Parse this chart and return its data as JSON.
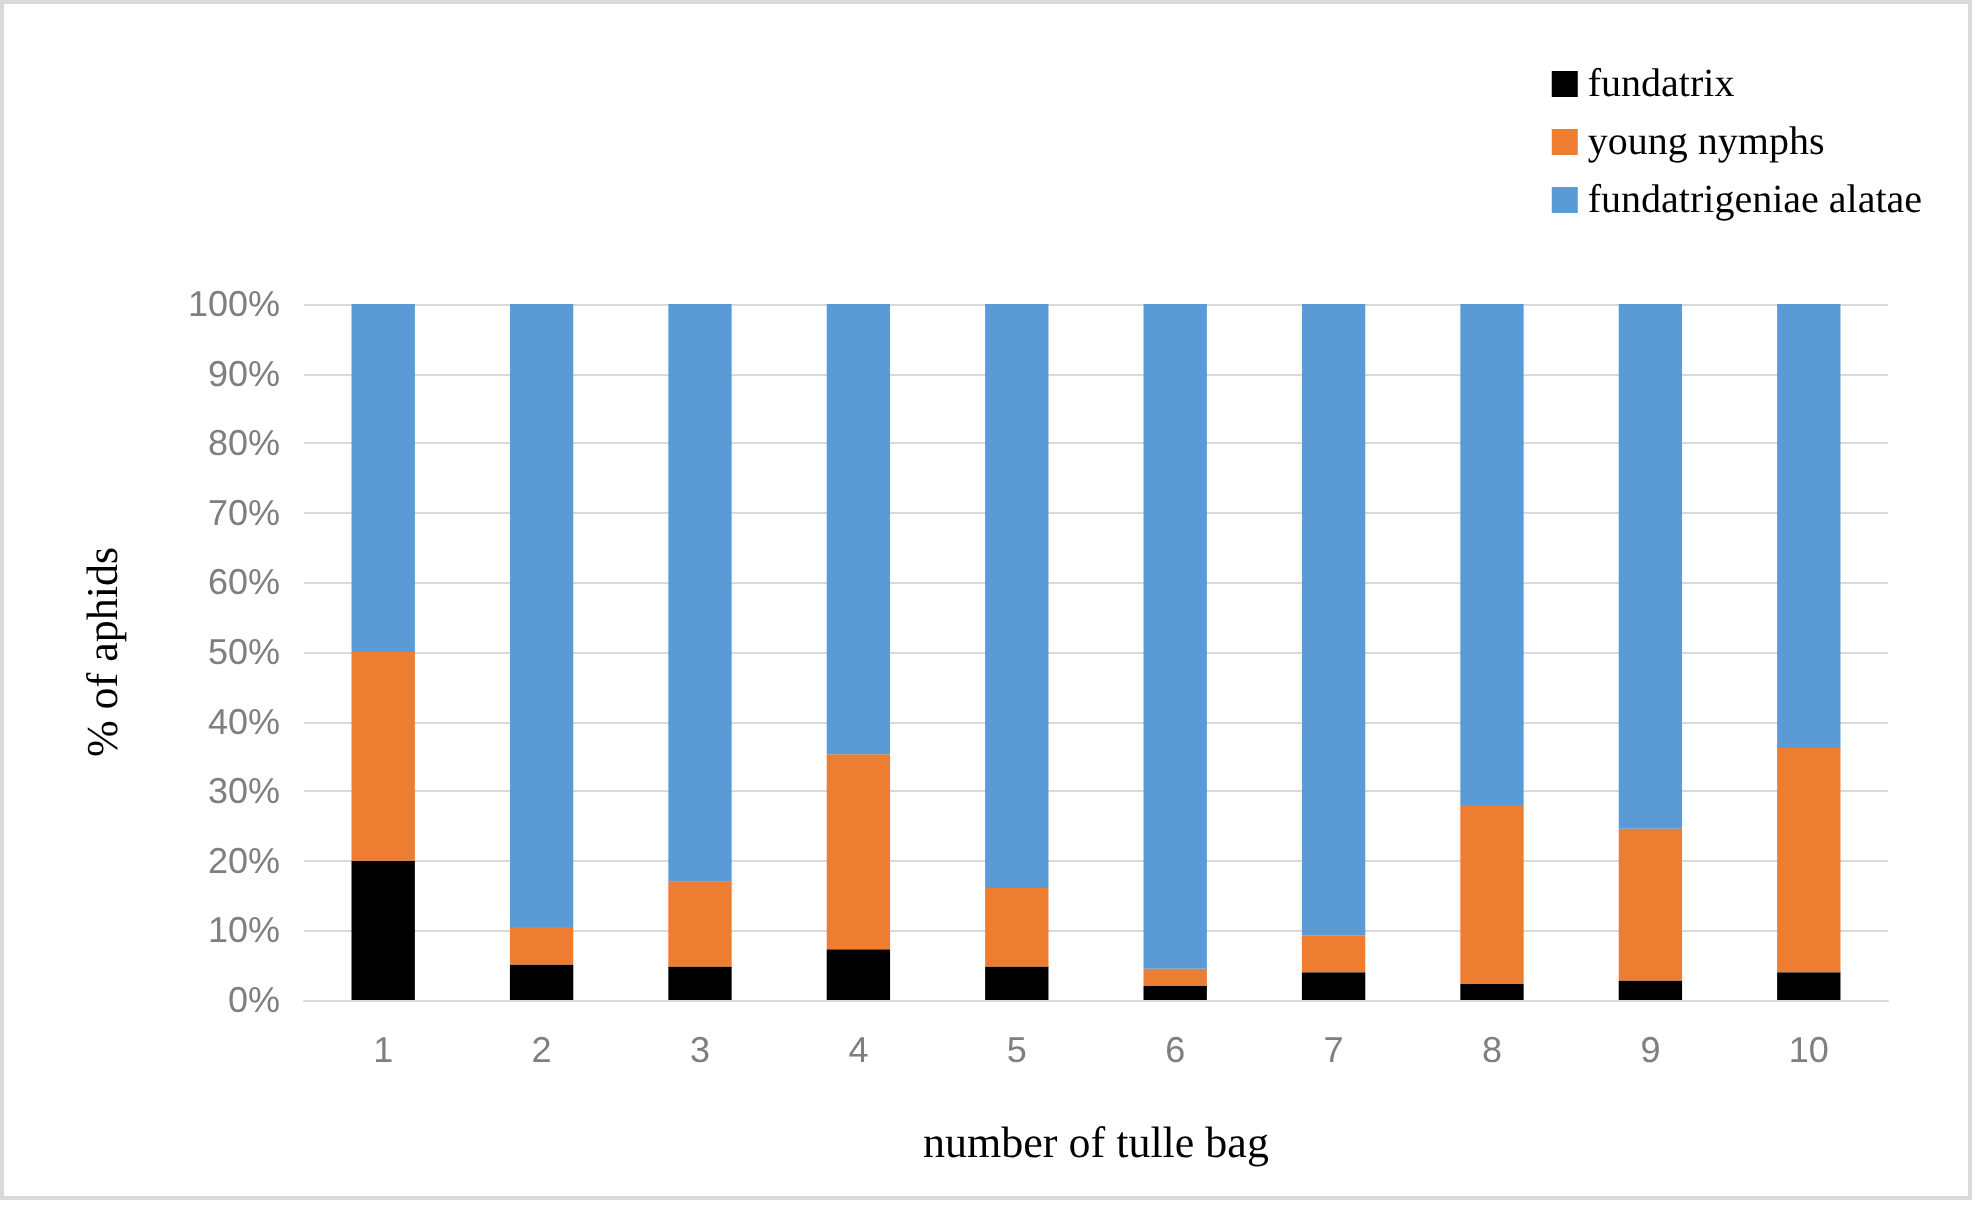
{
  "chart_data": {
    "type": "bar",
    "stacked": true,
    "xlabel": "number of tulle bag",
    "ylabel": "% of aphids",
    "categories": [
      "1",
      "2",
      "3",
      "4",
      "5",
      "6",
      "7",
      "8",
      "9",
      "10"
    ],
    "series": [
      {
        "name": "fundatrix",
        "color": "#000000",
        "values": [
          20,
          5.1,
          4.8,
          7.3,
          4.8,
          2,
          4,
          2.3,
          2.8,
          4
        ]
      },
      {
        "name": "young nymphs",
        "color": "#ed7d31",
        "values": [
          30,
          5.4,
          12.2,
          28,
          11.3,
          2.5,
          5.3,
          25.7,
          21.8,
          32.2
        ]
      },
      {
        "name": "fundatrigeniae alatae",
        "color": "#5b9bd5",
        "values": [
          50,
          89.5,
          83,
          64.7,
          83.9,
          95.5,
          90.7,
          72,
          75.4,
          63.8
        ]
      }
    ],
    "ylim": [
      0,
      100
    ],
    "yticks": [
      {
        "value": 0,
        "label": "0%"
      },
      {
        "value": 10,
        "label": "10%"
      },
      {
        "value": 20,
        "label": "20%"
      },
      {
        "value": 30,
        "label": "30%"
      },
      {
        "value": 40,
        "label": "40%"
      },
      {
        "value": 50,
        "label": "50%"
      },
      {
        "value": 60,
        "label": "60%"
      },
      {
        "value": 70,
        "label": "70%"
      },
      {
        "value": 80,
        "label": "80%"
      },
      {
        "value": 90,
        "label": "90%"
      },
      {
        "value": 100,
        "label": "100%"
      }
    ],
    "grid": "y",
    "legend": "top right"
  }
}
